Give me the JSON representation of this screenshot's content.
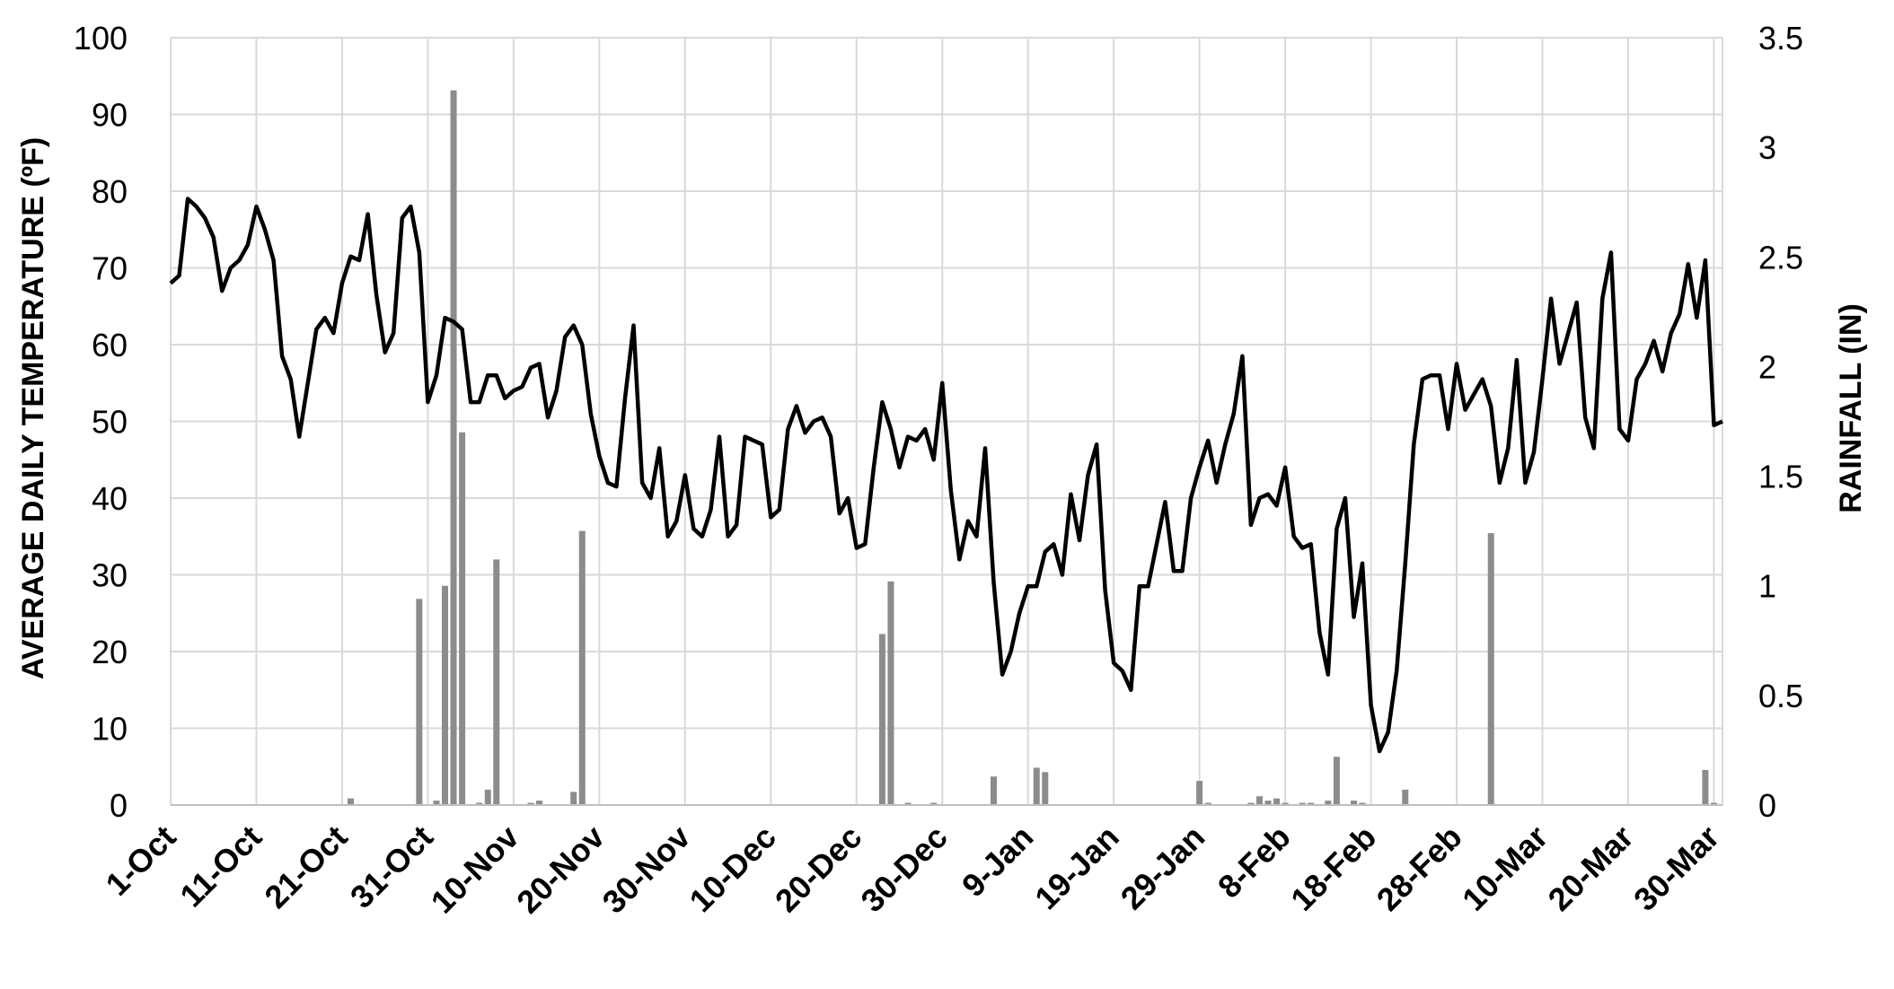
{
  "chart_data": {
    "type": "line",
    "x_tick_labels": [
      "1-Oct",
      "11-Oct",
      "21-Oct",
      "31-Oct",
      "10-Nov",
      "20-Nov",
      "30-Nov",
      "10-Dec",
      "20-Dec",
      "30-Dec",
      "9-Jan",
      "19-Jan",
      "29-Jan",
      "8-Feb",
      "18-Feb",
      "28-Feb",
      "10-Mar",
      "20-Mar",
      "30-Mar"
    ],
    "xlim_days": [
      0,
      181
    ],
    "y_left": {
      "label": "AVERAGE DAILY TEMPERATURE (ºF)",
      "ylim": [
        0,
        100
      ],
      "ticks": [
        "0",
        "10",
        "20",
        "30",
        "40",
        "50",
        "60",
        "70",
        "80",
        "90",
        "100"
      ]
    },
    "y_right": {
      "label": "RAINFALL (IN)",
      "ylim": [
        0,
        3.5
      ],
      "ticks": [
        "0",
        "0.5",
        "1",
        "1.5",
        "2",
        "2.5",
        "3",
        "3.5"
      ]
    },
    "grid": true,
    "colors": {
      "temperature_line": "#000000",
      "rainfall_bars": "#8c8c8c",
      "grid": "#d9d9d9"
    },
    "series": [
      {
        "type": "line",
        "axis": "left",
        "values": [
          68,
          69,
          79,
          78,
          76.5,
          74,
          67,
          70,
          71,
          73,
          78,
          75,
          71,
          58.5,
          55.5,
          48,
          55,
          62,
          63.5,
          61.5,
          68,
          71.5,
          71,
          77,
          66.5,
          59,
          61.5,
          76.5,
          78,
          72,
          52.5,
          56,
          63.5,
          63,
          62,
          52.5,
          52.5,
          56,
          56,
          53,
          54,
          54.5,
          57,
          57.5,
          50.5,
          54,
          61,
          62.5,
          60,
          51,
          45.5,
          42,
          41.5,
          53,
          62.5,
          42,
          40,
          46.5,
          35,
          37,
          43,
          36,
          35,
          38.5,
          48,
          35,
          36.5,
          48,
          47.5,
          47,
          37.5,
          38.5,
          49,
          52,
          48.5,
          50,
          50.5,
          48,
          38,
          40,
          33.5,
          34,
          44,
          52.5,
          49,
          44,
          48,
          47.5,
          49,
          45,
          55,
          41,
          32,
          37,
          35,
          46.5,
          29,
          17,
          20,
          25,
          28.5,
          28.5,
          33,
          34,
          30,
          40.5,
          34.5,
          43,
          47,
          28,
          18.5,
          17.5,
          15,
          28.5,
          28.5,
          34,
          39.5,
          30.5,
          30.5,
          40,
          44,
          47.5,
          42,
          47,
          51,
          58.5,
          36.5,
          40,
          40.5,
          39,
          44,
          35,
          33.5,
          34,
          22.5,
          17,
          36,
          40,
          24.5,
          31.5,
          13,
          7,
          9.5,
          17.5,
          31.5,
          47,
          55.5,
          56,
          56,
          49,
          57.5,
          51.5,
          53.5,
          55.5,
          52,
          42,
          46.5,
          58,
          42,
          46,
          55.5,
          66,
          57.5,
          61.5,
          65.5,
          50.5,
          46.5,
          66,
          72,
          49,
          47.5,
          55.5,
          57.5,
          60.5,
          56.5,
          61.5,
          64,
          70.5,
          63.5,
          71,
          49.5,
          50
        ]
      },
      {
        "type": "bar",
        "axis": "right",
        "points": [
          [
            21,
            0.03
          ],
          [
            29,
            0.94
          ],
          [
            31,
            0.02
          ],
          [
            32,
            1.0
          ],
          [
            33,
            3.26
          ],
          [
            34,
            1.7
          ],
          [
            36,
            0.01
          ],
          [
            37,
            0.07
          ],
          [
            38,
            1.12
          ],
          [
            42,
            0.01
          ],
          [
            43,
            0.02
          ],
          [
            47,
            0.06
          ],
          [
            48,
            1.25
          ],
          [
            83,
            0.78
          ],
          [
            84,
            1.02
          ],
          [
            86,
            0.01
          ],
          [
            89,
            0.01
          ],
          [
            96,
            0.13
          ],
          [
            101,
            0.17
          ],
          [
            102,
            0.15
          ],
          [
            120,
            0.11
          ],
          [
            121,
            0.01
          ],
          [
            126,
            0.01
          ],
          [
            127,
            0.04
          ],
          [
            128,
            0.02
          ],
          [
            129,
            0.03
          ],
          [
            130,
            0.01
          ],
          [
            132,
            0.01
          ],
          [
            133,
            0.01
          ],
          [
            135,
            0.02
          ],
          [
            136,
            0.22
          ],
          [
            138,
            0.02
          ],
          [
            139,
            0.01
          ],
          [
            144,
            0.07
          ],
          [
            154,
            1.24
          ],
          [
            179,
            0.16
          ],
          [
            180,
            0.01
          ]
        ]
      }
    ]
  }
}
